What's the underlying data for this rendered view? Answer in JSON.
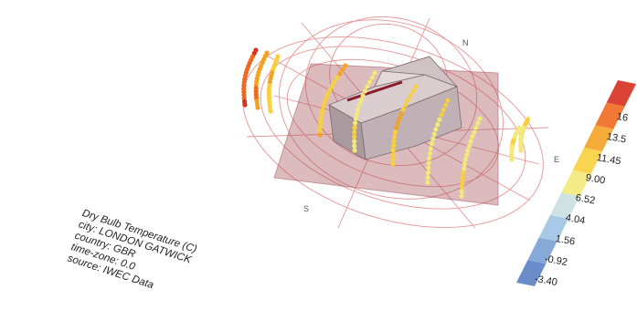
{
  "info": {
    "title": "Dry Bulb Temperature (C)",
    "city": "city: LONDON GATWICK",
    "country": "country: GBR",
    "timezone": "time-zone: 0.0",
    "source": "source: IWEC Data"
  },
  "compass": {
    "north": "N",
    "east": "E",
    "south": "S"
  },
  "legend": {
    "labels": [
      "16",
      "13.5",
      "11.45",
      "9.00",
      "6.52",
      "4.04",
      "1.56",
      "-0.92",
      "-3.40"
    ],
    "colors": [
      "#d7301f",
      "#ef6a1f",
      "#f4a224",
      "#f8cf3c",
      "#f3e97a",
      "#c9dfe0",
      "#9fc3e3",
      "#7aa0d4",
      "#5a7fc4"
    ]
  }
}
